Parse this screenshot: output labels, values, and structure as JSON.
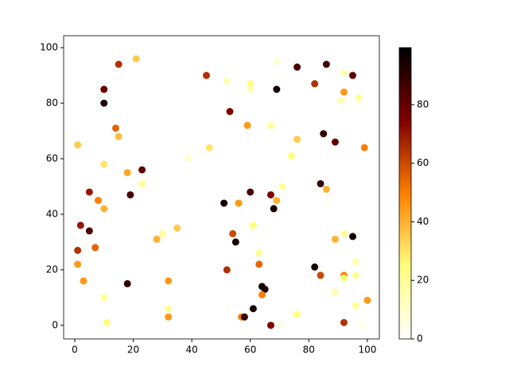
{
  "chart_data": {
    "type": "scatter",
    "cmap": "afmhot_r",
    "x": [
      10,
      10,
      15,
      21,
      14,
      15,
      1,
      10,
      18,
      23,
      23,
      5,
      19,
      8,
      10,
      2,
      5,
      1,
      7,
      1,
      3,
      10,
      11,
      18,
      28,
      30,
      35,
      32,
      32,
      32,
      39,
      45,
      46,
      52,
      53,
      60,
      60,
      59,
      67,
      69,
      69,
      76,
      82,
      86,
      95,
      92,
      92,
      91,
      97,
      74,
      76,
      85,
      89,
      99,
      84,
      86,
      71,
      67,
      69,
      68,
      60,
      51,
      56,
      61,
      54,
      55,
      63,
      63,
      52,
      64,
      65,
      64,
      61,
      57,
      58,
      67,
      70,
      76,
      82,
      84,
      89,
      92,
      95,
      96,
      92,
      92,
      96,
      89,
      96,
      100,
      92,
      98
    ],
    "y": [
      85,
      80,
      94,
      96,
      71,
      68,
      65,
      58,
      55,
      56,
      51,
      48,
      47,
      45,
      42,
      36,
      34,
      27,
      28,
      22,
      16,
      10,
      1,
      15,
      31,
      33,
      35,
      16,
      6,
      3,
      60,
      90,
      64,
      88,
      77,
      87,
      85,
      72,
      72,
      95,
      85,
      93,
      87,
      94,
      90,
      91,
      84,
      81,
      82,
      61,
      67,
      69,
      66,
      64,
      51,
      49,
      50,
      47,
      45,
      42,
      48,
      44,
      44,
      36,
      33,
      30,
      26,
      22,
      20,
      14,
      13,
      11,
      6,
      3,
      3,
      0,
      0,
      4,
      21,
      18,
      31,
      33,
      32,
      23,
      18,
      17,
      18,
      12,
      7,
      9,
      1,
      0
    ],
    "c": [
      80,
      95,
      65,
      35,
      55,
      38,
      35,
      30,
      42,
      80,
      20,
      70,
      85,
      50,
      40,
      70,
      85,
      65,
      55,
      45,
      45,
      20,
      25,
      90,
      40,
      20,
      35,
      45,
      20,
      45,
      10,
      65,
      30,
      15,
      75,
      25,
      15,
      45,
      20,
      10,
      95,
      85,
      65,
      85,
      80,
      15,
      45,
      15,
      20,
      25,
      35,
      90,
      80,
      50,
      90,
      40,
      20,
      75,
      40,
      95,
      85,
      95,
      45,
      25,
      60,
      95,
      20,
      55,
      65,
      95,
      95,
      50,
      95,
      50,
      90,
      75,
      5,
      25,
      95,
      60,
      40,
      20,
      95,
      15,
      50,
      25,
      20,
      15,
      20,
      45,
      65,
      5
    ],
    "xlim": [
      -3.8,
      104.1
    ],
    "ylim": [
      -4.9,
      104.3
    ],
    "clim": [
      0,
      99.5
    ],
    "xticks": [
      0,
      20,
      40,
      60,
      80,
      100
    ],
    "yticks": [
      0,
      20,
      40,
      60,
      80,
      100
    ],
    "cticks": [
      0,
      20,
      40,
      60,
      80
    ]
  }
}
